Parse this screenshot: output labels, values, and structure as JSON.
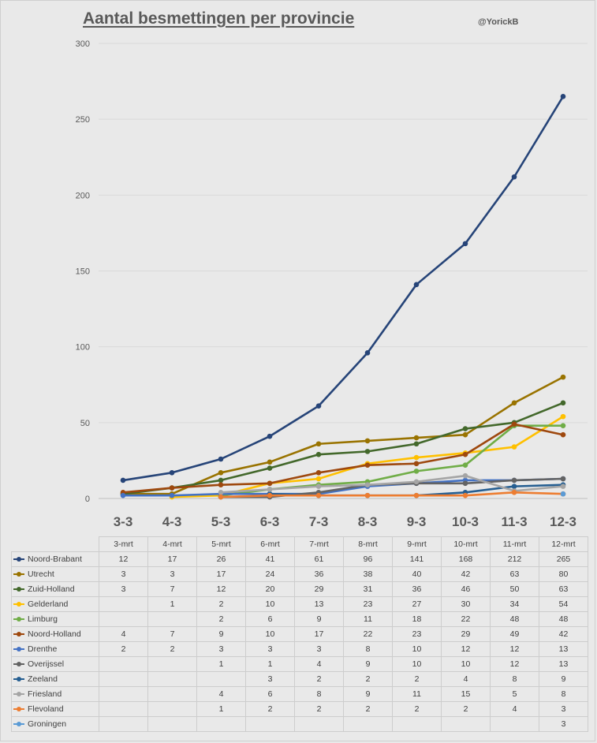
{
  "title": "Aantal besmettingen per provincie",
  "author": "@YorickB",
  "chart_data": {
    "type": "line",
    "title": "Aantal besmettingen per provincie",
    "x": [
      "3-3",
      "4-3",
      "5-3",
      "6-3",
      "7-3",
      "8-3",
      "9-3",
      "10-3",
      "11-3",
      "12-3"
    ],
    "ylim": [
      0,
      300
    ],
    "yticks": [
      0,
      50,
      100,
      150,
      200,
      250,
      300
    ],
    "grid": true,
    "legend": "bottom data table",
    "table_header": [
      "3-mrt",
      "4-mrt",
      "5-mrt",
      "6-mrt",
      "7-mrt",
      "8-mrt",
      "9-mrt",
      "10-mrt",
      "11-mrt",
      "12-mrt"
    ],
    "series": [
      {
        "name": "Noord-Brabant",
        "color": "#264478",
        "values": [
          12,
          17,
          26,
          41,
          61,
          96,
          141,
          168,
          212,
          265
        ]
      },
      {
        "name": "Utrecht",
        "color": "#997300",
        "values": [
          3,
          3,
          17,
          24,
          36,
          38,
          40,
          42,
          63,
          80
        ]
      },
      {
        "name": "Zuid-Holland",
        "color": "#43682b",
        "values": [
          3,
          7,
          12,
          20,
          29,
          31,
          36,
          46,
          50,
          63
        ]
      },
      {
        "name": "Gelderland",
        "color": "#ffc000",
        "values": [
          null,
          1,
          2,
          10,
          13,
          23,
          27,
          30,
          34,
          54
        ]
      },
      {
        "name": "Limburg",
        "color": "#70ad47",
        "values": [
          null,
          null,
          2,
          6,
          9,
          11,
          18,
          22,
          48,
          48
        ]
      },
      {
        "name": "Noord-Holland",
        "color": "#9e480e",
        "values": [
          4,
          7,
          9,
          10,
          17,
          22,
          23,
          29,
          49,
          42
        ]
      },
      {
        "name": "Drenthe",
        "color": "#4472c4",
        "values": [
          2,
          2,
          3,
          3,
          3,
          8,
          10,
          12,
          12,
          13
        ]
      },
      {
        "name": "Overijssel",
        "color": "#636363",
        "values": [
          null,
          null,
          1,
          1,
          4,
          9,
          10,
          10,
          12,
          13
        ]
      },
      {
        "name": "Zeeland",
        "color": "#255e91",
        "values": [
          null,
          null,
          null,
          3,
          2,
          2,
          2,
          4,
          8,
          9
        ]
      },
      {
        "name": "Friesland",
        "color": "#a5a5a5",
        "values": [
          null,
          null,
          4,
          6,
          8,
          9,
          11,
          15,
          5,
          8
        ]
      },
      {
        "name": "Flevoland",
        "color": "#ed7d31",
        "values": [
          null,
          null,
          1,
          2,
          2,
          2,
          2,
          2,
          4,
          3
        ]
      },
      {
        "name": "Groningen",
        "color": "#5b9bd5",
        "values": [
          null,
          null,
          null,
          null,
          null,
          null,
          null,
          null,
          null,
          3
        ]
      }
    ]
  }
}
